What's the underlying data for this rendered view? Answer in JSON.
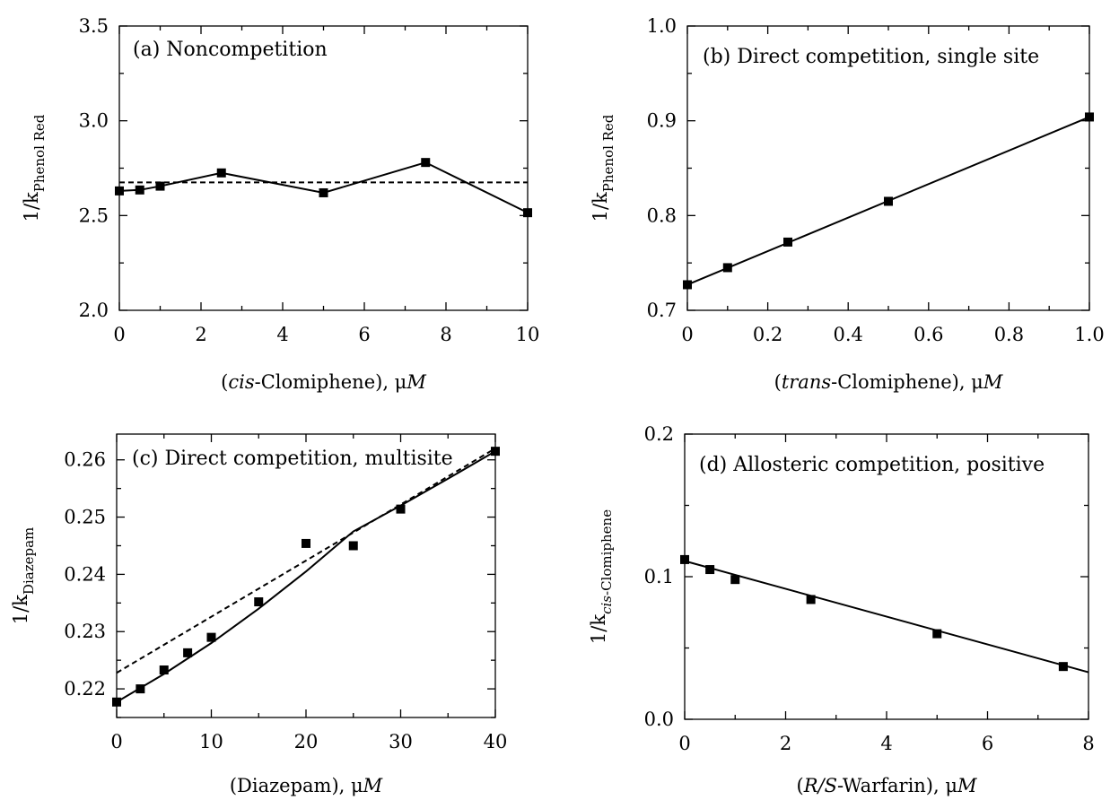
{
  "chart_data": [
    {
      "type": "scatter",
      "title": "(a) Noncompetition",
      "xlabel": {
        "pre": "(",
        "italic": "cis",
        "post": "-Clomiphene), μ",
        "unit": "M"
      },
      "ylabel": {
        "main": "1/k",
        "sub": "Phenol Red"
      },
      "xlim": [
        0,
        10
      ],
      "ylim": [
        2.0,
        3.5
      ],
      "xticks": [
        0,
        2,
        4,
        6,
        8,
        10
      ],
      "yticks": [
        2.0,
        2.5,
        3.0,
        3.5
      ],
      "ytick_labels": [
        "2.0",
        "2.5",
        "3.0",
        "3.5"
      ],
      "xtick_labels": [
        "0",
        "2",
        "4",
        "6",
        "8",
        "10"
      ],
      "series": [
        {
          "x": [
            0,
            0.5,
            1,
            2.5,
            5,
            7.5,
            10
          ],
          "y": [
            2.63,
            2.635,
            2.655,
            2.725,
            2.62,
            2.78,
            2.515
          ],
          "markers": true,
          "connect": "solid"
        }
      ],
      "reference_line": {
        "y": 2.675,
        "style": "dashed"
      }
    },
    {
      "type": "scatter",
      "title": "(b) Direct competition, single site",
      "xlabel": {
        "pre": "(",
        "italic": "trans",
        "post": "-Clomiphene), μ",
        "unit": "M"
      },
      "ylabel": {
        "main": "1/k",
        "sub": "Phenol Red"
      },
      "xlim": [
        0,
        1.0
      ],
      "ylim": [
        0.7,
        1.0
      ],
      "xticks": [
        0,
        0.2,
        0.4,
        0.6,
        0.8,
        1.0
      ],
      "xtick_labels": [
        "0",
        "0.2",
        "0.4",
        "0.6",
        "0.8",
        "1.0"
      ],
      "yticks": [
        0.7,
        0.8,
        0.9,
        1.0
      ],
      "ytick_labels": [
        "0.7",
        "0.8",
        "0.9",
        "1.0"
      ],
      "series": [
        {
          "x": [
            0,
            0.1,
            0.25,
            0.5,
            1.0
          ],
          "y": [
            0.727,
            0.745,
            0.772,
            0.815,
            0.904
          ],
          "markers": true,
          "connect": "none"
        }
      ],
      "fit_lines": [
        {
          "x1": 0,
          "y1": 0.727,
          "x2": 1.0,
          "y2": 0.904,
          "style": "solid"
        }
      ]
    },
    {
      "type": "scatter",
      "title": "(c) Direct competition, multisite",
      "xlabel": {
        "pre": "(Diazepam), μ",
        "italic": "",
        "post": "",
        "unit": "M"
      },
      "ylabel": {
        "main": "1/k",
        "sub": "Diazepam"
      },
      "xlim": [
        0,
        40
      ],
      "ylim": [
        0.215,
        0.2645
      ],
      "xticks": [
        0,
        10,
        20,
        30,
        40
      ],
      "xtick_labels": [
        "0",
        "10",
        "20",
        "30",
        "40"
      ],
      "yticks": [
        0.22,
        0.23,
        0.24,
        0.25,
        0.26
      ],
      "ytick_labels": [
        "0.22",
        "0.23",
        "0.24",
        "0.25",
        "0.26"
      ],
      "series": [
        {
          "x": [
            0,
            2.5,
            5,
            7.5,
            10,
            15,
            20,
            25,
            30,
            40
          ],
          "y": [
            0.2177,
            0.22,
            0.2233,
            0.2263,
            0.229,
            0.2352,
            0.2454,
            0.245,
            0.2514,
            0.2615
          ],
          "markers": true,
          "connect": "none"
        }
      ],
      "fit_lines": [
        {
          "points": [
            [
              0,
              0.2177
            ],
            [
              5,
              0.2226
            ],
            [
              10,
              0.228
            ],
            [
              15,
              0.234
            ],
            [
              20,
              0.2405
            ],
            [
              25,
              0.2475
            ],
            [
              30,
              0.252
            ],
            [
              35,
              0.2567
            ],
            [
              40,
              0.2615
            ]
          ],
          "style": "solid"
        },
        {
          "x1": 0,
          "y1": 0.2228,
          "x2": 40,
          "y2": 0.262,
          "style": "dashed"
        }
      ]
    },
    {
      "type": "scatter",
      "title": "(d) Allosteric competition, positive",
      "xlabel": {
        "pre": "(",
        "italic": "R/S",
        "post": "-Warfarin), μ",
        "unit": "M"
      },
      "ylabel": {
        "main": "1/k",
        "sub_italic": "cis",
        "sub": "-Clomiphene"
      },
      "xlim": [
        0,
        8
      ],
      "ylim": [
        0.0,
        0.2
      ],
      "xticks": [
        0,
        2,
        4,
        6,
        8
      ],
      "xtick_labels": [
        "0",
        "2",
        "4",
        "6",
        "8"
      ],
      "yticks": [
        0.0,
        0.1,
        0.2
      ],
      "ytick_labels": [
        "0.0",
        "0.1",
        "0.2"
      ],
      "series": [
        {
          "x": [
            0,
            0.5,
            1,
            2.5,
            5,
            7.5
          ],
          "y": [
            0.112,
            0.105,
            0.098,
            0.084,
            0.06,
            0.037
          ],
          "markers": true,
          "connect": "none"
        }
      ],
      "fit_lines": [
        {
          "x1": 0,
          "y1": 0.111,
          "x2": 8,
          "y2": 0.033,
          "style": "solid"
        }
      ]
    }
  ]
}
